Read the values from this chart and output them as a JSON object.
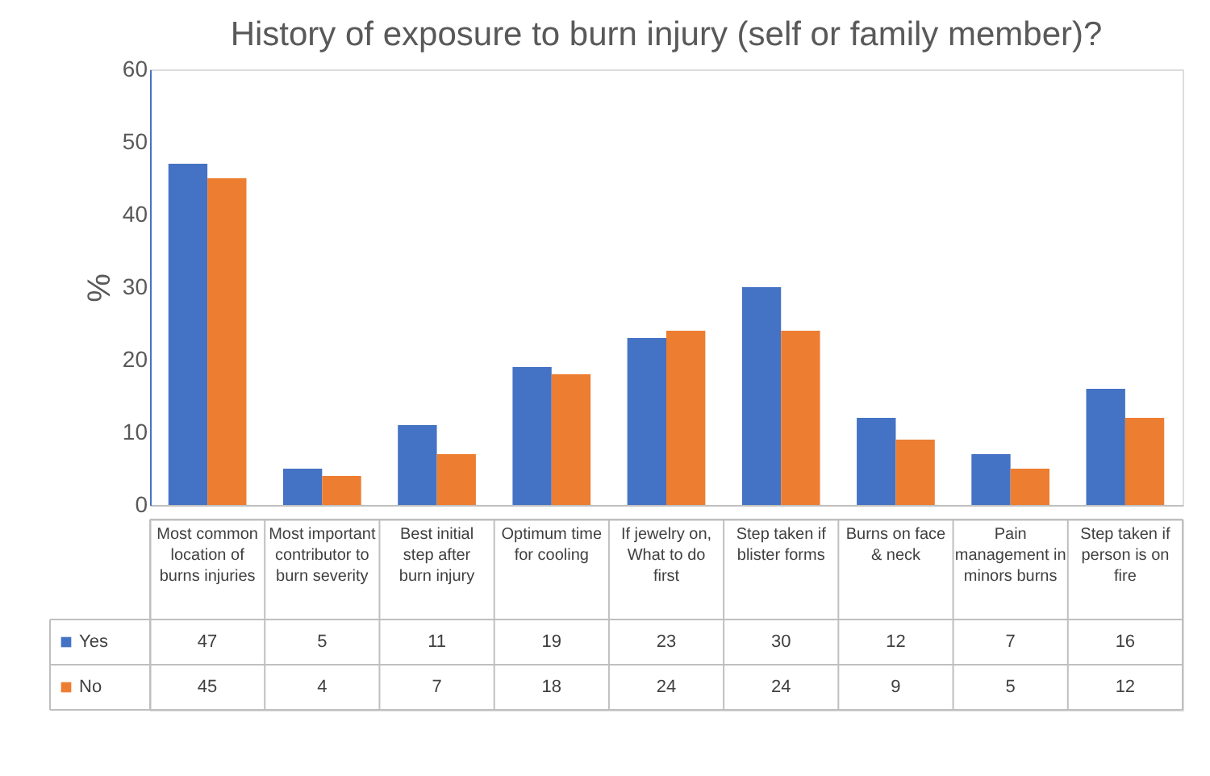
{
  "chart_data": {
    "type": "bar",
    "title": "History of exposure to burn injury (self or family member)?",
    "ylabel": "%",
    "categories": [
      "Most common location of burns injuries",
      "Most important contributor to burn severity",
      "Best initial step after burn injury",
      "Optimum time for cooling",
      "If jewelry on, What to do first",
      "Step taken if blister forms",
      "Burns on face & neck",
      "Pain management in minors burns",
      "Step taken if person is on fire"
    ],
    "series": [
      {
        "name": "Yes",
        "color": "#4472c4",
        "values": [
          47,
          5,
          11,
          19,
          23,
          30,
          12,
          7,
          16
        ]
      },
      {
        "name": "No",
        "color": "#ed7d31",
        "values": [
          45,
          4,
          7,
          18,
          24,
          24,
          9,
          5,
          12
        ]
      }
    ],
    "ylim": [
      0,
      60
    ],
    "yticks": [
      0,
      10,
      20,
      30,
      40,
      50,
      60
    ],
    "grid": false,
    "data_labels": true,
    "legend": "bottom"
  }
}
